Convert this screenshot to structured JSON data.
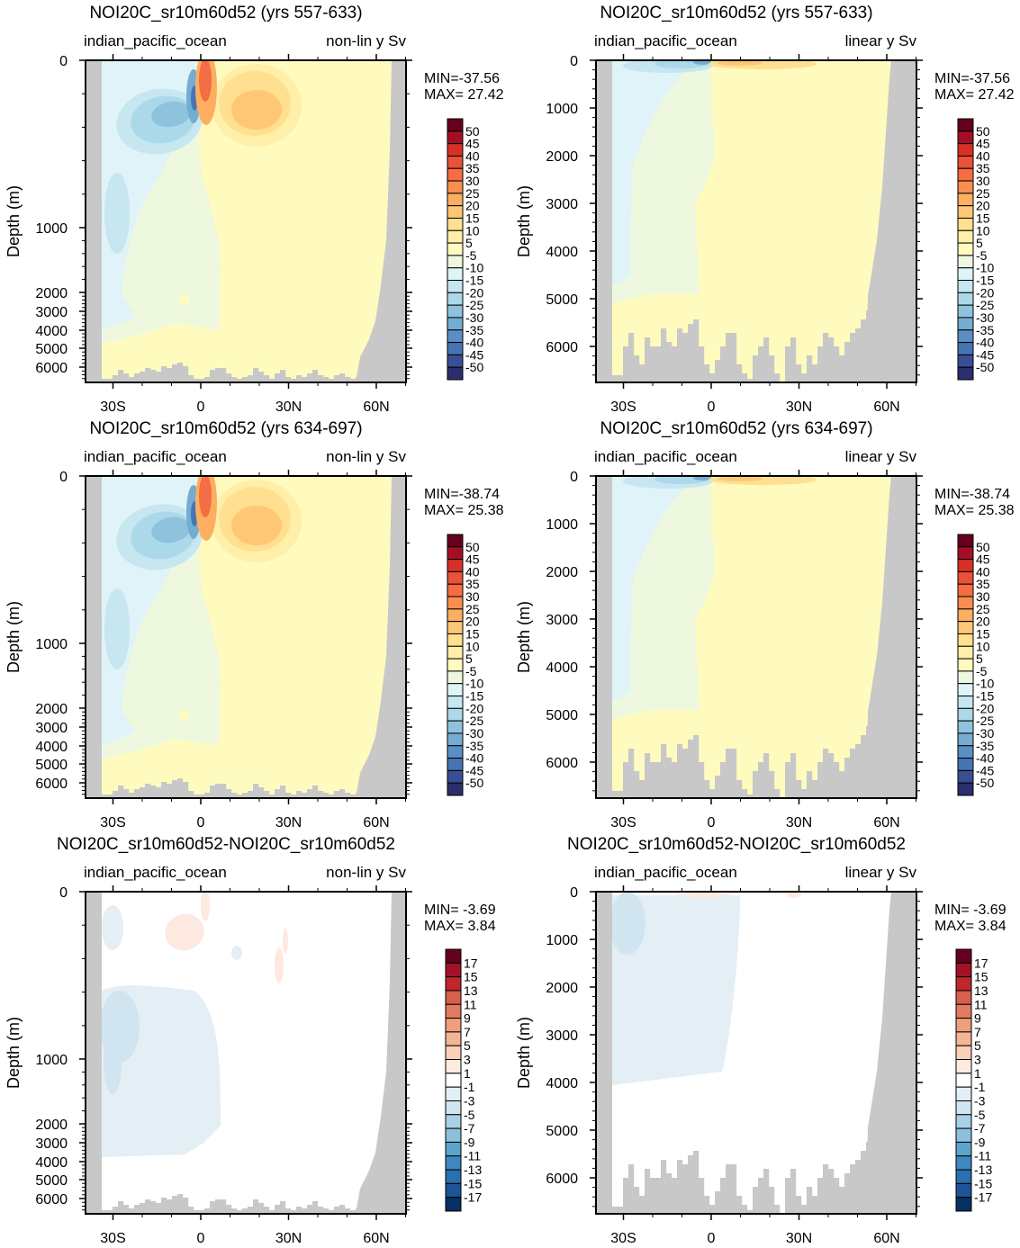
{
  "chart_data": {
    "type": "heatmap",
    "xlabel": "",
    "ylabel": "Depth (m)",
    "x_ticks": [
      "30S",
      "0",
      "30N",
      "60N"
    ],
    "x_tick_values": [
      -30,
      0,
      30,
      60
    ],
    "y_ticks_nonlinear": [
      "0",
      "1000",
      "2000",
      "3000",
      "4000",
      "5000",
      "6000"
    ],
    "y_ticks_linear": [
      "0",
      "1000",
      "2000",
      "3000",
      "4000",
      "5000",
      "6000"
    ],
    "colorbars": {
      "full": {
        "labels": [
          "50",
          "45",
          "40",
          "35",
          "30",
          "25",
          "20",
          "15",
          "10",
          "5",
          "-5",
          "-10",
          "-15",
          "-20",
          "-25",
          "-30",
          "-35",
          "-40",
          "-45",
          "-50"
        ],
        "colors": [
          "#67001f",
          "#a50f26",
          "#d73027",
          "#e8513a",
          "#f46d43",
          "#f98e52",
          "#fdae61",
          "#fec776",
          "#fee090",
          "#ffefa8",
          "#fffbbf",
          "#eef8df",
          "#e0f3f8",
          "#c6e6f0",
          "#abd9e9",
          "#8fc3dd",
          "#74add1",
          "#5b8fc4",
          "#4575b4",
          "#3a4e96",
          "#2c2e6c"
        ]
      },
      "diff": {
        "labels": [
          "17",
          "15",
          "13",
          "11",
          "9",
          "7",
          "5",
          "3",
          "1",
          "-1",
          "-3",
          "-5",
          "-7",
          "-9",
          "-11",
          "-13",
          "-15",
          "-17"
        ],
        "colors": [
          "#67001f",
          "#a11228",
          "#c0272d",
          "#d6604d",
          "#e07b62",
          "#f09e7d",
          "#f4b596",
          "#fbd0b9",
          "#fdebdf",
          "#ffffff",
          "#e4eef5",
          "#d1e5f0",
          "#a9d0e6",
          "#8cc0dc",
          "#5ea3cc",
          "#3f88bf",
          "#2a6fae",
          "#1b5597",
          "#053061"
        ]
      }
    },
    "panels": [
      {
        "title": "NOI20C_sr10m60d52 (yrs 557-633)",
        "left_sub": "indian_pacific_ocean",
        "right_sub": "non-lin y Sv",
        "min_label": "MIN=-37.56",
        "max_label": "MAX= 27.42",
        "min": -37.56,
        "max": 27.42,
        "yaxis": "nonlinear",
        "colorbar": "full",
        "style": "A"
      },
      {
        "title": "NOI20C_sr10m60d52 (yrs 557-633)",
        "left_sub": "indian_pacific_ocean",
        "right_sub": "linear y Sv",
        "min_label": "MIN=-37.56",
        "max_label": "MAX= 27.42",
        "min": -37.56,
        "max": 27.42,
        "yaxis": "linear",
        "colorbar": "full",
        "style": "B"
      },
      {
        "title": "NOI20C_sr10m60d52 (yrs 634-697)",
        "left_sub": "indian_pacific_ocean",
        "right_sub": "non-lin y Sv",
        "min_label": "MIN=-38.74",
        "max_label": "MAX= 25.38",
        "min": -38.74,
        "max": 25.38,
        "yaxis": "nonlinear",
        "colorbar": "full",
        "style": "A"
      },
      {
        "title": "NOI20C_sr10m60d52 (yrs 634-697)",
        "left_sub": "indian_pacific_ocean",
        "right_sub": "linear y Sv",
        "min_label": "MIN=-38.74",
        "max_label": "MAX= 25.38",
        "min": -38.74,
        "max": 25.38,
        "yaxis": "linear",
        "colorbar": "full",
        "style": "B"
      },
      {
        "title": "NOI20C_sr10m60d52-NOI20C_sr10m60d52",
        "left_sub": "indian_pacific_ocean",
        "right_sub": "non-lin y Sv",
        "min_label": "MIN= -3.69",
        "max_label": "MAX=  3.84",
        "min": -3.69,
        "max": 3.84,
        "yaxis": "nonlinear",
        "colorbar": "diff",
        "style": "C"
      },
      {
        "title": "NOI20C_sr10m60d52-NOI20C_sr10m60d52",
        "left_sub": "indian_pacific_ocean",
        "right_sub": "linear y Sv",
        "min_label": "MIN= -3.69",
        "max_label": "MAX=  3.84",
        "min": -3.69,
        "max": 3.84,
        "yaxis": "linear",
        "colorbar": "diff",
        "style": "D"
      }
    ]
  }
}
